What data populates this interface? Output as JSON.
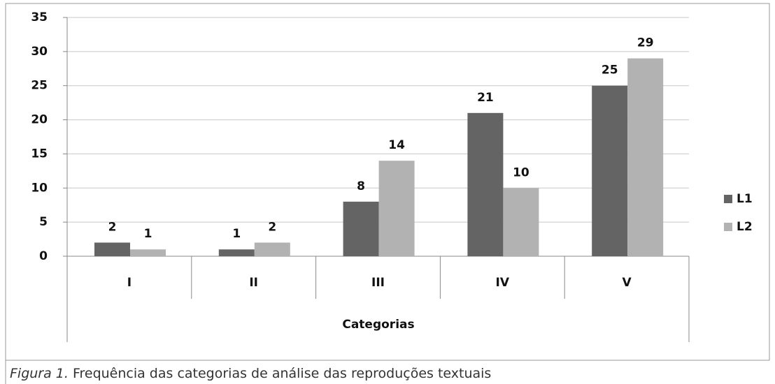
{
  "chart_data": {
    "type": "bar",
    "categories": [
      "I",
      "II",
      "III",
      "IV",
      "V"
    ],
    "series": [
      {
        "name": "L1",
        "color": "#646464",
        "values": [
          2,
          1,
          8,
          21,
          25
        ]
      },
      {
        "name": "L2",
        "color": "#b2b2b2",
        "values": [
          1,
          2,
          14,
          10,
          29
        ]
      }
    ],
    "ylim": [
      0,
      35
    ],
    "yticks": [
      0,
      5,
      10,
      15,
      20,
      25,
      30,
      35
    ],
    "grid": true,
    "xlabel": "Categorias",
    "legend": "right",
    "caption_label": "Figura 1.",
    "caption": "Frequência das categorias de análise das reproduções textuais"
  }
}
